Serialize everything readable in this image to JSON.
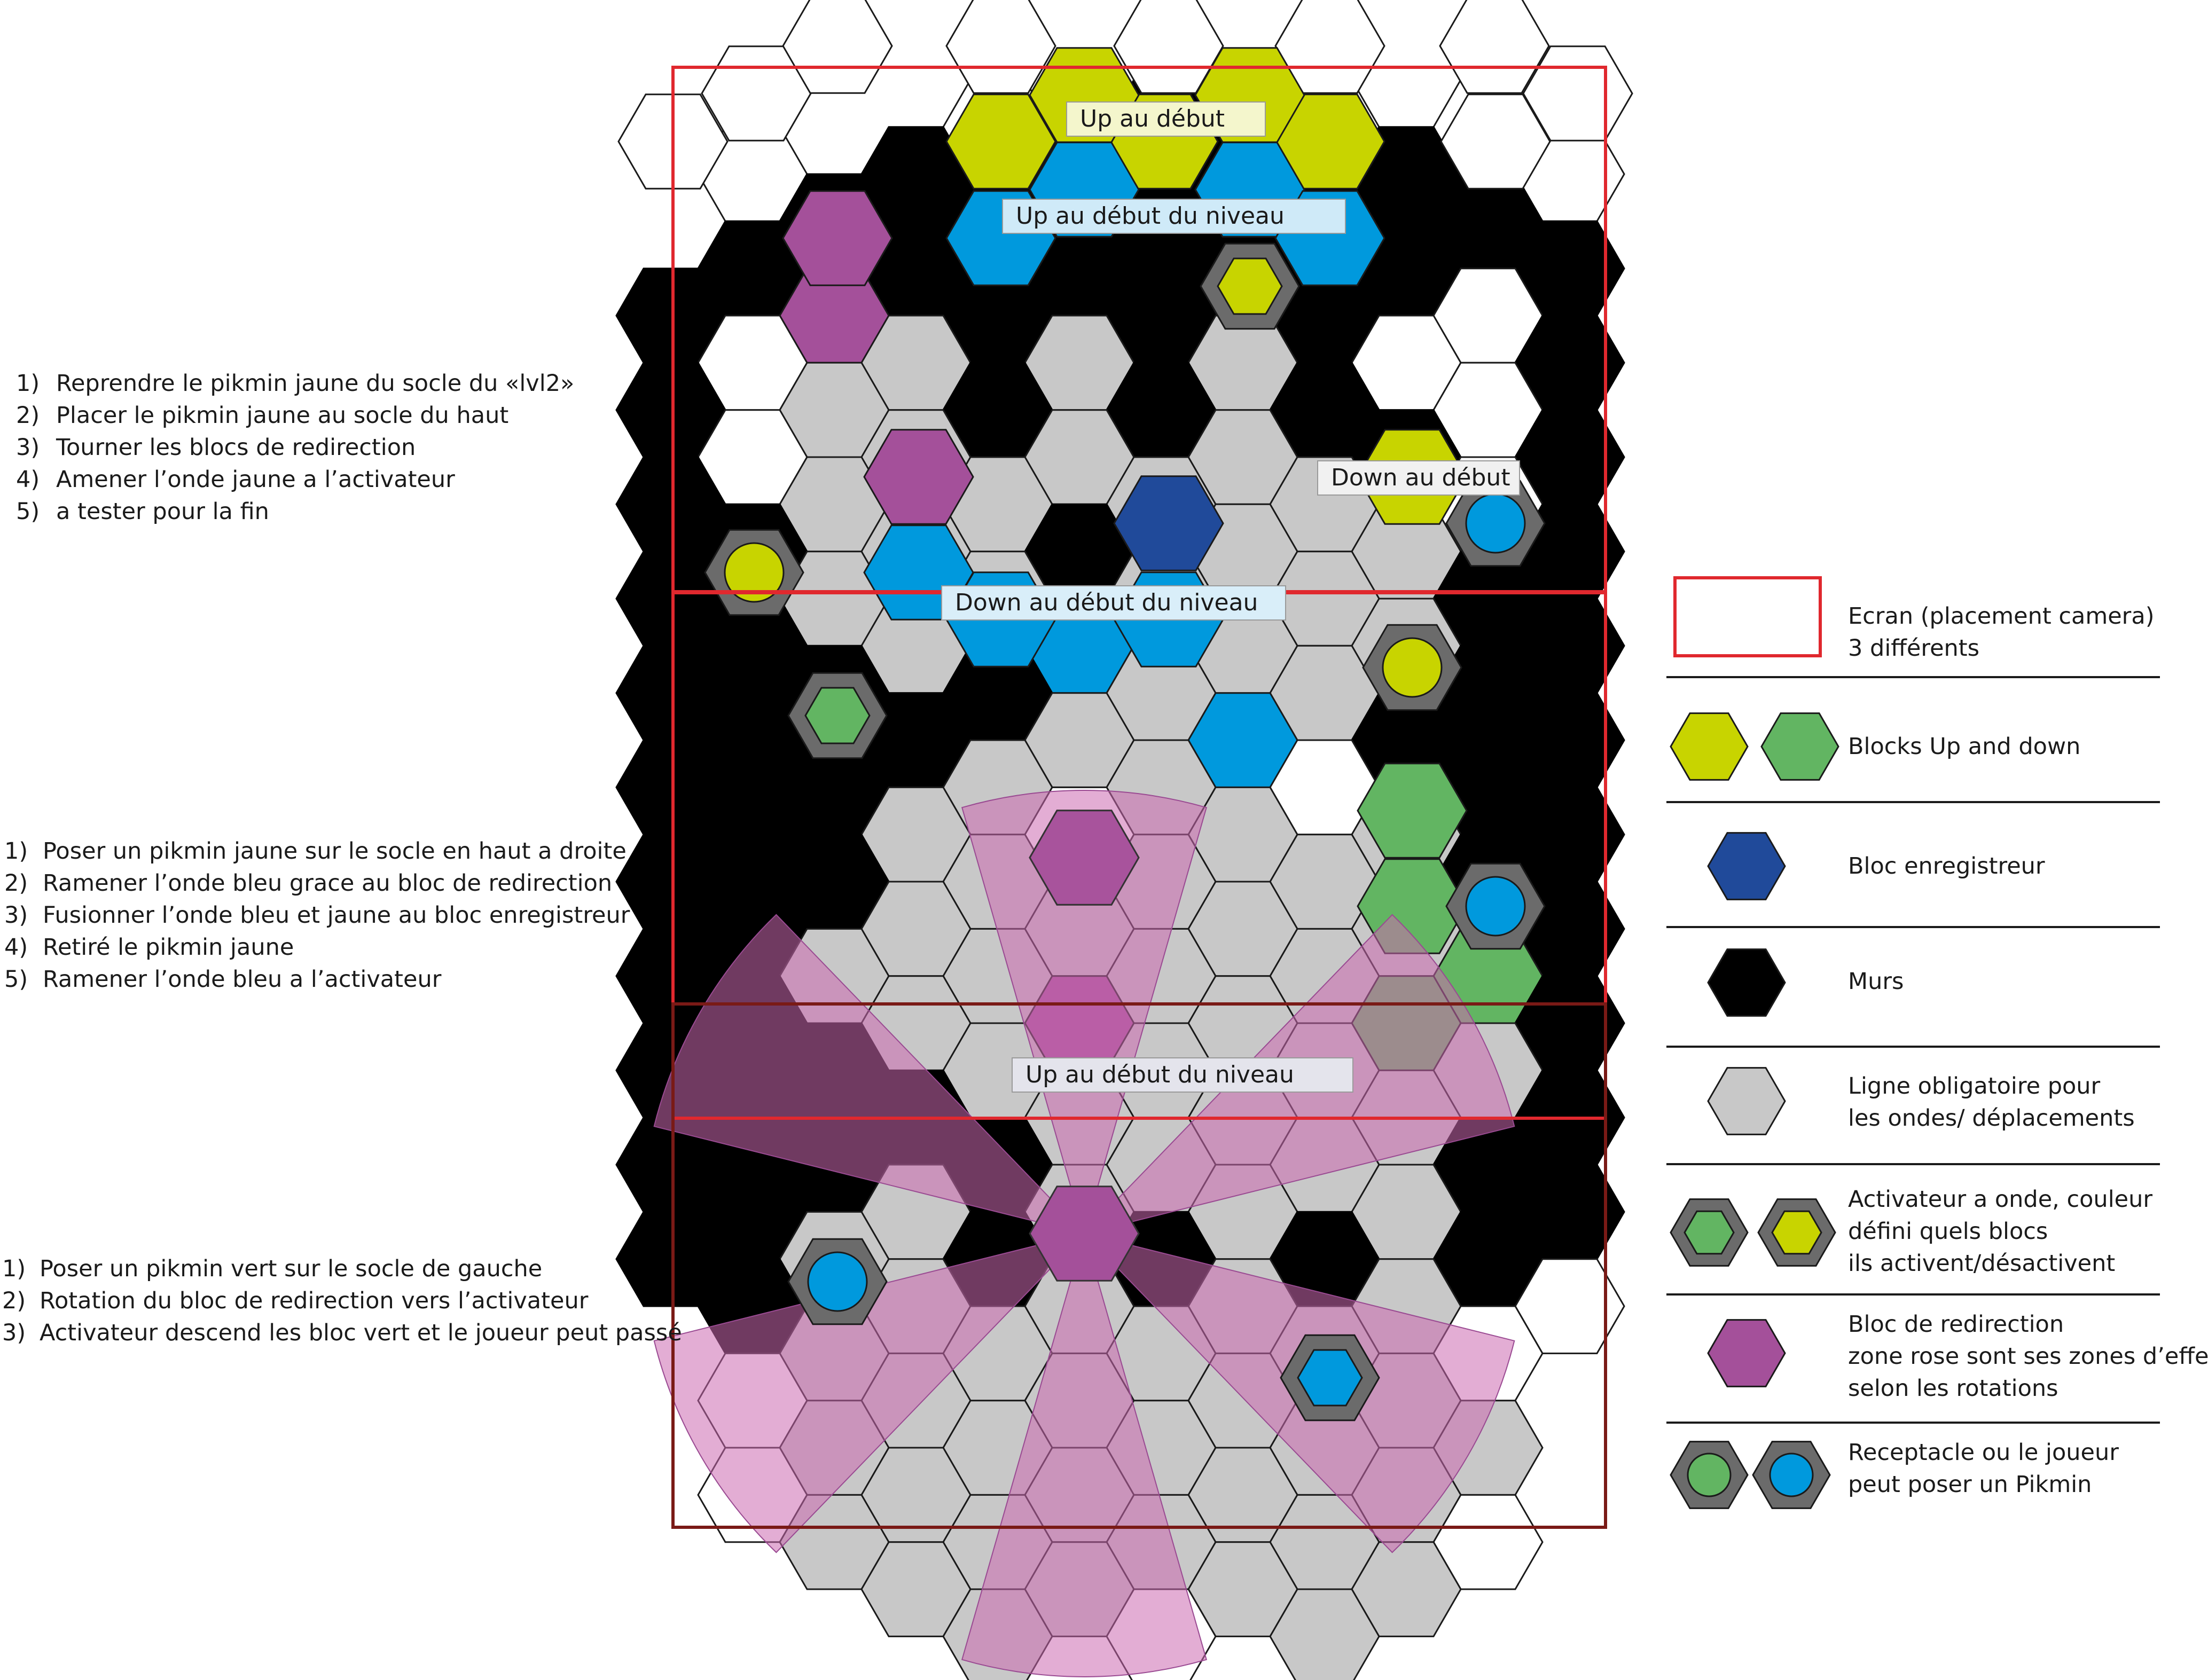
{
  "annotations": {
    "up_debut": "Up au début",
    "up_debut_niveau_top": "Up au début du niveau",
    "down_debut": "Down au début",
    "down_debut_niveau": "Down au début du niveau",
    "up_debut_niveau_bottom": "Up au début du niveau"
  },
  "instructions": [
    {
      "steps": [
        {
          "num": "1)",
          "text": "Reprendre le pikmin jaune du socle du «lvl2»"
        },
        {
          "num": "2)",
          "text": "Placer le pikmin jaune au socle du haut"
        },
        {
          "num": "3)",
          "text": "Tourner les blocs de redirection"
        },
        {
          "num": "4)",
          "text": "Amener l’onde jaune a l’activateur"
        },
        {
          "num": "5)",
          "text": "a tester pour la fin"
        }
      ]
    },
    {
      "steps": [
        {
          "num": "1)",
          "text": "Poser un pikmin jaune sur le socle en haut a droite"
        },
        {
          "num": "2)",
          "text": "Ramener l’onde bleu grace au bloc de redirection"
        },
        {
          "num": "3)",
          "text": "Fusionner l’onde bleu et jaune au bloc enregistreur"
        },
        {
          "num": "4)",
          "text": "Retiré le pikmin jaune"
        },
        {
          "num": "5)",
          "text": "Ramener l’onde bleu a l’activateur"
        }
      ]
    },
    {
      "steps": [
        {
          "num": "1)",
          "text": "Poser un pikmin vert sur le socle de gauche"
        },
        {
          "num": "2)",
          "text": "Rotation du bloc de redirection vers l’activateur"
        },
        {
          "num": "3)",
          "text": "Activateur descend les bloc vert et le joueur peut passé"
        }
      ]
    }
  ],
  "legend": [
    {
      "icon": "red-rectangle",
      "lines": [
        "Ecran (placement camera)",
        "3 différents"
      ]
    },
    {
      "icon": "hex-yellow-green",
      "lines": [
        "Blocks Up and down"
      ]
    },
    {
      "icon": "hex-dark-blue",
      "lines": [
        "Bloc enregistreur"
      ]
    },
    {
      "icon": "hex-black",
      "lines": [
        "Murs"
      ]
    },
    {
      "icon": "hex-grey",
      "lines": [
        "Ligne obligatoire pour",
        "les ondes/ déplacements"
      ]
    },
    {
      "icon": "activator-green-yellow",
      "lines": [
        "Activateur a onde, couleur",
        "défini quels blocs",
        "ils activent/désactivent"
      ]
    },
    {
      "icon": "hex-purple",
      "lines": [
        "Bloc de redirection",
        "zone rose sont ses zones d’effets",
        "selon les rotations"
      ]
    },
    {
      "icon": "receptacle-green-blue",
      "lines": [
        "Receptacle ou le joueur",
        " peut poser un Pikmin"
      ]
    }
  ],
  "colors": {
    "white": "#ffffff",
    "black": "#000000",
    "grey": "#c8c8c8",
    "yellow": "#c8d400",
    "blue": "#0099dd",
    "dark_blue": "#204a9a",
    "purple": "#a4509a",
    "green": "#62b562",
    "pink": "#cc6ab0",
    "red": "#e0282e",
    "dark_red": "#7a1a16",
    "socket": "#6b6b6b"
  }
}
